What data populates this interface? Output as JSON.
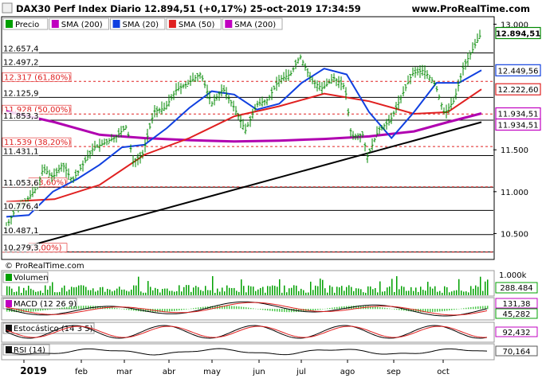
{
  "header": {
    "title": "DAX30 Perf Index Diario 12.894,51 (+0,17%) 25-oct-2019 17:34:59",
    "site": "www.ProRealTime.com",
    "copyright": "© ProRealTime.com"
  },
  "legend": [
    {
      "label": "Precio",
      "color": "#00a000"
    },
    {
      "label": "SMA (200)",
      "color": "#c000c0"
    },
    {
      "label": "SMA (20)",
      "color": "#1040e0"
    },
    {
      "label": "SMA (50)",
      "color": "#e02020"
    },
    {
      "label": "SMA (200)",
      "color": "#c000c0"
    }
  ],
  "price_levels": [
    {
      "label": "12.657,4",
      "value": 12657.4
    },
    {
      "label": "12.497,2",
      "value": 12497.2
    },
    {
      "label": "12.125,9",
      "value": 12125.9
    },
    {
      "label": "11.853,3",
      "value": 11853.3
    },
    {
      "label": "11.431,1",
      "value": 11431.1
    },
    {
      "label": "11.053,6",
      "value": 11053.6
    },
    {
      "label": "10.776,4",
      "value": 10776.4
    },
    {
      "label": "10.487,1",
      "value": 10487.1
    },
    {
      "label": "10.279,3",
      "value": 10279.3
    }
  ],
  "fibonacci": [
    {
      "label": "12.317 (61,80%)",
      "value": 12317
    },
    {
      "label": "11.928 (50,00%)",
      "value": 11928
    },
    {
      "label": "11.539 (38,20%)",
      "value": 11539
    },
    {
      "label": "(23,60%)",
      "value": 11058
    },
    {
      "label": "(0,00%)",
      "value": 10279
    }
  ],
  "axis_badges": [
    {
      "label": "12.894,51",
      "value": 12894.51,
      "color": "#008800"
    },
    {
      "label": "12.449,56",
      "value": 12449.56,
      "color": "#1040e0"
    },
    {
      "label": "12.222,60",
      "value": 12222.6,
      "color": "#e02020"
    },
    {
      "label": "11.934,51",
      "value": 11934.51,
      "color": "#c000c0"
    },
    {
      "label": "11.934,51",
      "value": 11934.51,
      "color": "#c000c0"
    }
  ],
  "right_axis_ticks": [
    "13.000",
    "11.500",
    "11.000",
    "10.500"
  ],
  "x_labels": [
    "2019",
    "feb",
    "mar",
    "abr",
    "may",
    "jun",
    "jul",
    "ago",
    "sep",
    "oct"
  ],
  "panels": {
    "volume": {
      "label": "Volumen",
      "ticks": [
        "1.000k"
      ],
      "badge": "288.484",
      "badge_color": "#00a000"
    },
    "macd": {
      "label": "MACD (12 26 9)",
      "badges": [
        {
          "label": "131,38",
          "color": "#c000c0"
        },
        {
          "label": "45,282",
          "color": "#00a000"
        }
      ]
    },
    "stochastic": {
      "label": "Estocástico (14 3 5)",
      "badge": "92,432",
      "badge_color": "#c000c0"
    },
    "rsi": {
      "label": "RSI (14)",
      "badge": "70,164"
    }
  },
  "colors": {
    "price": "#008800",
    "sma20": "#1040e0",
    "sma50": "#e02020",
    "sma200": "#b000b0",
    "trend": "#000000",
    "fib": "#e02020"
  },
  "chart_data": {
    "type": "line",
    "ylim": [
      10200,
      13080
    ],
    "x_range": [
      "2019-01-02",
      "2019-10-25"
    ],
    "series": [
      {
        "name": "Precio",
        "points": [
          [
            "2019-01-02",
            10580
          ],
          [
            "2019-01-08",
            10800
          ],
          [
            "2019-01-14",
            10880
          ],
          [
            "2019-01-21",
            11050
          ],
          [
            "2019-01-25",
            11280
          ],
          [
            "2019-01-31",
            11170
          ],
          [
            "2019-02-06",
            11330
          ],
          [
            "2019-02-12",
            11130
          ],
          [
            "2019-02-18",
            11300
          ],
          [
            "2019-02-25",
            11520
          ],
          [
            "2019-03-04",
            11580
          ],
          [
            "2019-03-11",
            11650
          ],
          [
            "2019-03-18",
            11780
          ],
          [
            "2019-03-22",
            11350
          ],
          [
            "2019-03-28",
            11450
          ],
          [
            "2019-04-04",
            11960
          ],
          [
            "2019-04-11",
            12000
          ],
          [
            "2019-04-18",
            12220
          ],
          [
            "2019-04-25",
            12290
          ],
          [
            "2019-05-03",
            12410
          ],
          [
            "2019-05-10",
            12050
          ],
          [
            "2019-05-17",
            12230
          ],
          [
            "2019-05-24",
            12000
          ],
          [
            "2019-05-31",
            11730
          ],
          [
            "2019-06-07",
            12040
          ],
          [
            "2019-06-14",
            12100
          ],
          [
            "2019-06-21",
            12340
          ],
          [
            "2019-06-28",
            12400
          ],
          [
            "2019-07-04",
            12620
          ],
          [
            "2019-07-11",
            12330
          ],
          [
            "2019-07-18",
            12230
          ],
          [
            "2019-07-25",
            12360
          ],
          [
            "2019-08-01",
            12250
          ],
          [
            "2019-08-05",
            11660
          ],
          [
            "2019-08-12",
            11680
          ],
          [
            "2019-08-15",
            11420
          ],
          [
            "2019-08-22",
            11740
          ],
          [
            "2019-08-29",
            11840
          ],
          [
            "2019-09-05",
            12130
          ],
          [
            "2019-09-12",
            12410
          ],
          [
            "2019-09-19",
            12450
          ],
          [
            "2019-09-26",
            12290
          ],
          [
            "2019-10-02",
            11930
          ],
          [
            "2019-10-08",
            12090
          ],
          [
            "2019-10-14",
            12500
          ],
          [
            "2019-10-18",
            12640
          ],
          [
            "2019-10-25",
            12894.51
          ]
        ]
      },
      {
        "name": "SMA (20)",
        "points": [
          [
            "2019-01-02",
            10700
          ],
          [
            "2019-01-16",
            10720
          ],
          [
            "2019-01-31",
            11000
          ],
          [
            "2019-02-15",
            11150
          ],
          [
            "2019-03-01",
            11320
          ],
          [
            "2019-03-15",
            11530
          ],
          [
            "2019-03-29",
            11560
          ],
          [
            "2019-04-12",
            11760
          ],
          [
            "2019-04-26",
            12000
          ],
          [
            "2019-05-10",
            12200
          ],
          [
            "2019-05-24",
            12160
          ],
          [
            "2019-06-07",
            11980
          ],
          [
            "2019-06-21",
            12050
          ],
          [
            "2019-07-05",
            12300
          ],
          [
            "2019-07-19",
            12470
          ],
          [
            "2019-08-02",
            12400
          ],
          [
            "2019-08-16",
            11950
          ],
          [
            "2019-08-30",
            11640
          ],
          [
            "2019-09-13",
            11950
          ],
          [
            "2019-09-27",
            12300
          ],
          [
            "2019-10-11",
            12300
          ],
          [
            "2019-10-25",
            12449.56
          ]
        ]
      },
      {
        "name": "SMA (50)",
        "points": [
          [
            "2019-01-02",
            10880
          ],
          [
            "2019-02-01",
            10910
          ],
          [
            "2019-03-01",
            11080
          ],
          [
            "2019-03-29",
            11440
          ],
          [
            "2019-04-26",
            11640
          ],
          [
            "2019-05-24",
            11900
          ],
          [
            "2019-06-21",
            12020
          ],
          [
            "2019-07-19",
            12170
          ],
          [
            "2019-08-16",
            12080
          ],
          [
            "2019-09-13",
            11930
          ],
          [
            "2019-10-04",
            11950
          ],
          [
            "2019-10-25",
            12222.6
          ]
        ]
      },
      {
        "name": "SMA (200)",
        "points": [
          [
            "2019-01-02",
            11960
          ],
          [
            "2019-02-01",
            11830
          ],
          [
            "2019-03-01",
            11680
          ],
          [
            "2019-03-29",
            11640
          ],
          [
            "2019-04-26",
            11615
          ],
          [
            "2019-05-24",
            11600
          ],
          [
            "2019-06-21",
            11610
          ],
          [
            "2019-07-19",
            11630
          ],
          [
            "2019-08-16",
            11660
          ],
          [
            "2019-09-13",
            11720
          ],
          [
            "2019-10-04",
            11830
          ],
          [
            "2019-10-25",
            11934.51
          ]
        ]
      },
      {
        "name": "trendline",
        "points": [
          [
            "2019-01-04",
            10290
          ],
          [
            "2019-10-25",
            11830
          ]
        ]
      }
    ]
  }
}
